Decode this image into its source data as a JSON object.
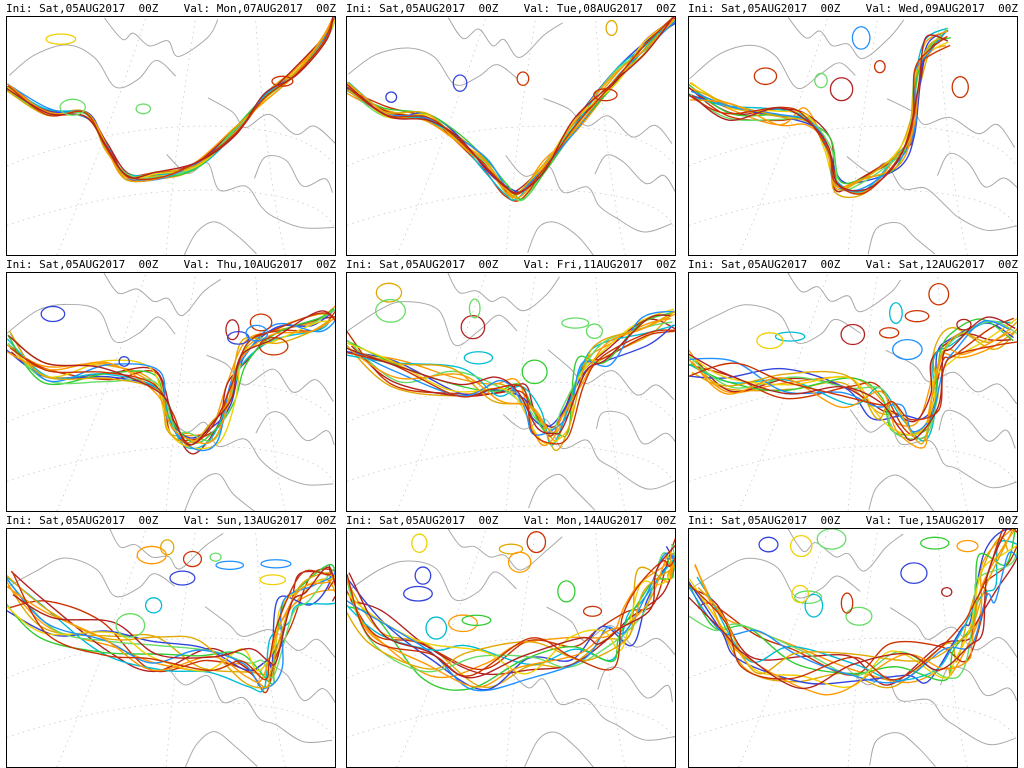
{
  "colors": {
    "coastline": "#a9a9a9",
    "gridline": "#c8c8c8",
    "frame": "#000000",
    "members": [
      "#e0a800",
      "#ff9900",
      "#cc3300",
      "#b22222",
      "#3344dd",
      "#00bcd4",
      "#33cc33",
      "#66dd66",
      "#f0d000",
      "#1e90ff"
    ]
  },
  "panels": [
    {
      "ini_label": "Ini:",
      "ini_date": "Sat,05AUG2017",
      "ini_hour": "00Z",
      "val_label": "Val:",
      "val_date": "Mon,07AUG2017",
      "val_hour": "00Z",
      "spread": 1
    },
    {
      "ini_label": "Ini:",
      "ini_date": "Sat,05AUG2017",
      "ini_hour": "00Z",
      "val_label": "Val:",
      "val_date": "Tue,08AUG2017",
      "val_hour": "00Z",
      "spread": 2
    },
    {
      "ini_label": "Ini:",
      "ini_date": "Sat,05AUG2017",
      "ini_hour": "00Z",
      "val_label": "Val:",
      "val_date": "Wed,09AUG2017",
      "val_hour": "00Z",
      "spread": 3
    },
    {
      "ini_label": "Ini:",
      "ini_date": "Sat,05AUG2017",
      "ini_hour": "00Z",
      "val_label": "Val:",
      "val_date": "Thu,10AUG2017",
      "val_hour": "00Z",
      "spread": 4
    },
    {
      "ini_label": "Ini:",
      "ini_date": "Sat,05AUG2017",
      "ini_hour": "00Z",
      "val_label": "Val:",
      "val_date": "Fri,11AUG2017",
      "val_hour": "00Z",
      "spread": 5
    },
    {
      "ini_label": "Ini:",
      "ini_date": "Sat,05AUG2017",
      "ini_hour": "00Z",
      "val_label": "Val:",
      "val_date": "Sat,12AUG2017",
      "val_hour": "00Z",
      "spread": 6
    },
    {
      "ini_label": "Ini:",
      "ini_date": "Sat,05AUG2017",
      "ini_hour": "00Z",
      "val_label": "Val:",
      "val_date": "Sun,13AUG2017",
      "val_hour": "00Z",
      "spread": 7
    },
    {
      "ini_label": "Ini:",
      "ini_date": "Sat,05AUG2017",
      "ini_hour": "00Z",
      "val_label": "Val:",
      "val_date": "Mon,14AUG2017",
      "val_hour": "00Z",
      "spread": 8
    },
    {
      "ini_label": "Ini:",
      "ini_date": "Sat,05AUG2017",
      "ini_hour": "00Z",
      "val_label": "Val:",
      "val_date": "Tue,15AUG2017",
      "val_hour": "00Z",
      "spread": 9
    }
  ]
}
